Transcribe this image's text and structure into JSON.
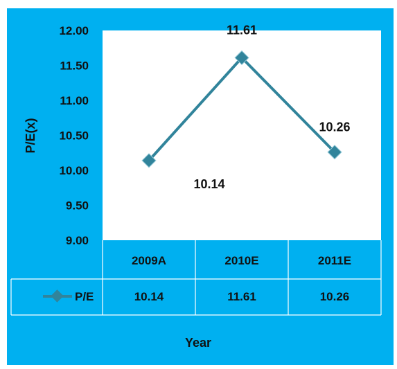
{
  "chart_data": {
    "type": "line",
    "categories": [
      "2009A",
      "2010E",
      "2011E"
    ],
    "series": [
      {
        "name": "P/E",
        "values": [
          10.14,
          11.61,
          10.26
        ],
        "color": "#31849b"
      }
    ],
    "data_labels": [
      "10.14",
      "11.61",
      "10.26"
    ],
    "y_ticks": [
      "12.00",
      "11.50",
      "11.00",
      "10.50",
      "10.00",
      "9.50",
      "9.00"
    ],
    "ylim": [
      9.0,
      12.0
    ],
    "ylabel": "P/E(x)",
    "xlabel": "Year",
    "table": {
      "series_label": "P/E",
      "values": [
        "10.14",
        "11.61",
        "10.26"
      ]
    },
    "grid": false,
    "legend": "data-table",
    "colors": {
      "background": "#00b0f0",
      "plot": "#ffffff",
      "line": "#31849b",
      "marker": "#31849b"
    }
  }
}
